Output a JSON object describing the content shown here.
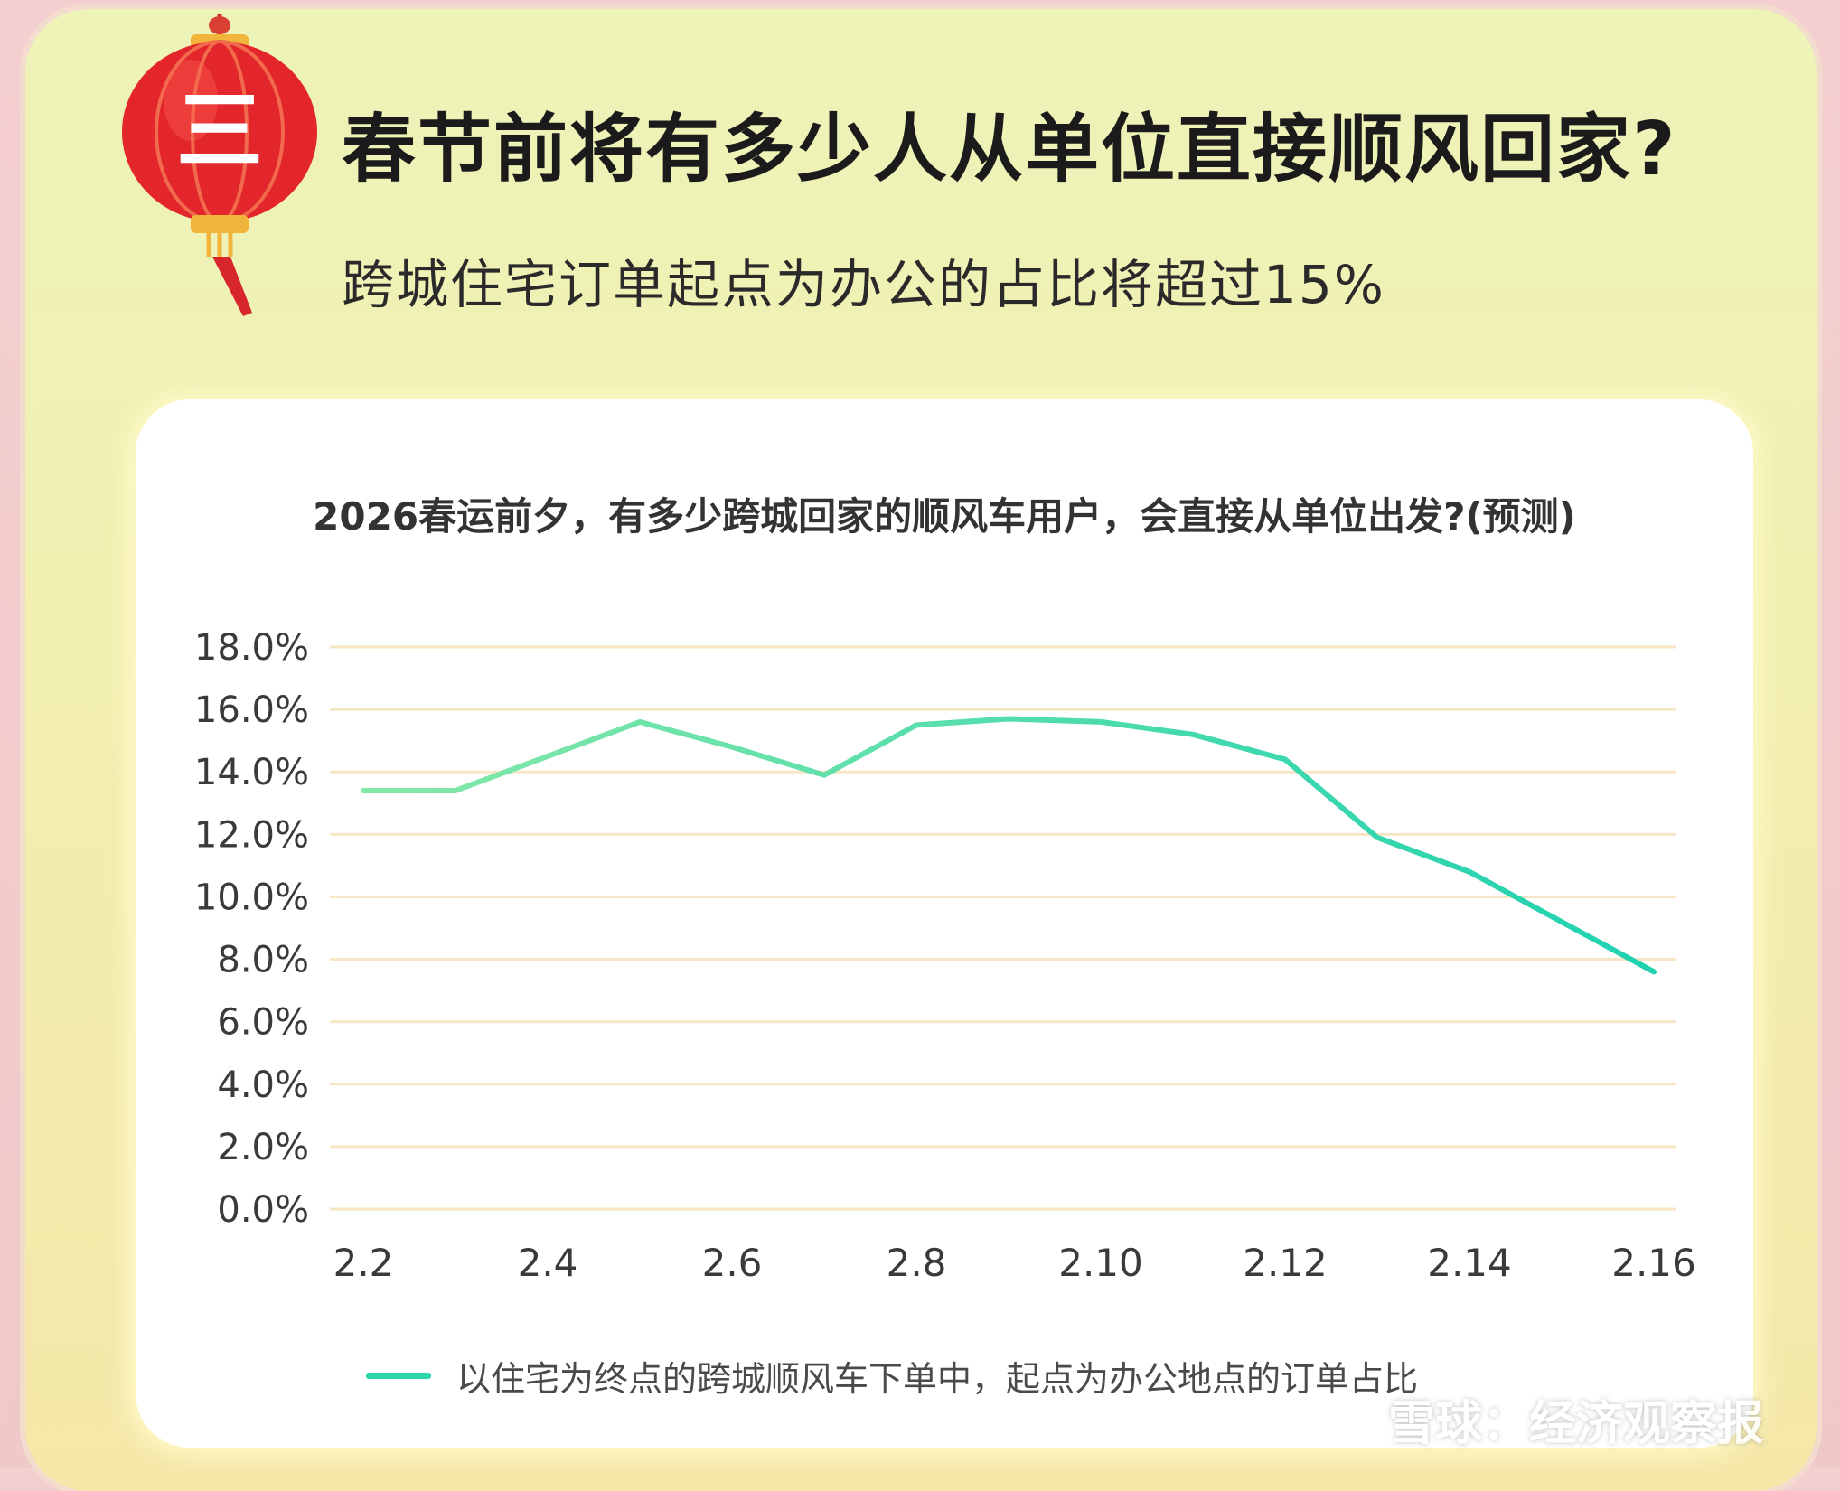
{
  "header": {
    "title": "春节前将有多少人从单位直接顺风回家?",
    "subtitle": "跨城住宅订单起点为办公的占比将超过15%",
    "badge_char": "三"
  },
  "watermark": {
    "text": "雪球：经济观察报"
  },
  "colors": {
    "line": "#2fd6ad",
    "line_light": "#86e8a8",
    "grid": "#f7e6c4",
    "card_bg": "#ffffff",
    "page_bg": "#eef3b8",
    "lantern_red": "#e3262b",
    "lantern_gold": "#f2b53c"
  },
  "icons": {
    "lantern": "red-lantern-icon",
    "watermark_logo": "snowball-logo-icon"
  },
  "chart_data": {
    "type": "line",
    "title": "2026春运前夕，有多少跨城回家的顺风车用户，会直接从单位出发?(预测)",
    "xlabel": "",
    "ylabel": "",
    "categories": [
      "2.2",
      "2.3",
      "2.4",
      "2.5",
      "2.6",
      "2.7",
      "2.8",
      "2.9",
      "2.10",
      "2.11",
      "2.12",
      "2.13",
      "2.14",
      "2.15",
      "2.16"
    ],
    "x_tick_labels": [
      "2.2",
      "2.4",
      "2.6",
      "2.8",
      "2.10",
      "2.12",
      "2.14",
      "2.16"
    ],
    "y_tick_labels": [
      "18.0%",
      "16.0%",
      "14.0%",
      "12.0%",
      "10.0%",
      "8.0%",
      "6.0%",
      "4.0%",
      "2.0%",
      "0.0%"
    ],
    "ylim": [
      0,
      18
    ],
    "grid": true,
    "legend_position": "bottom",
    "series": [
      {
        "name": "以住宅为终点的跨城顺风车下单中，起点为办公地点的订单占比",
        "values": [
          13.4,
          13.4,
          14.5,
          15.6,
          14.8,
          13.9,
          15.5,
          15.7,
          15.6,
          15.2,
          14.4,
          11.9,
          10.8,
          9.2,
          7.6
        ]
      }
    ]
  }
}
